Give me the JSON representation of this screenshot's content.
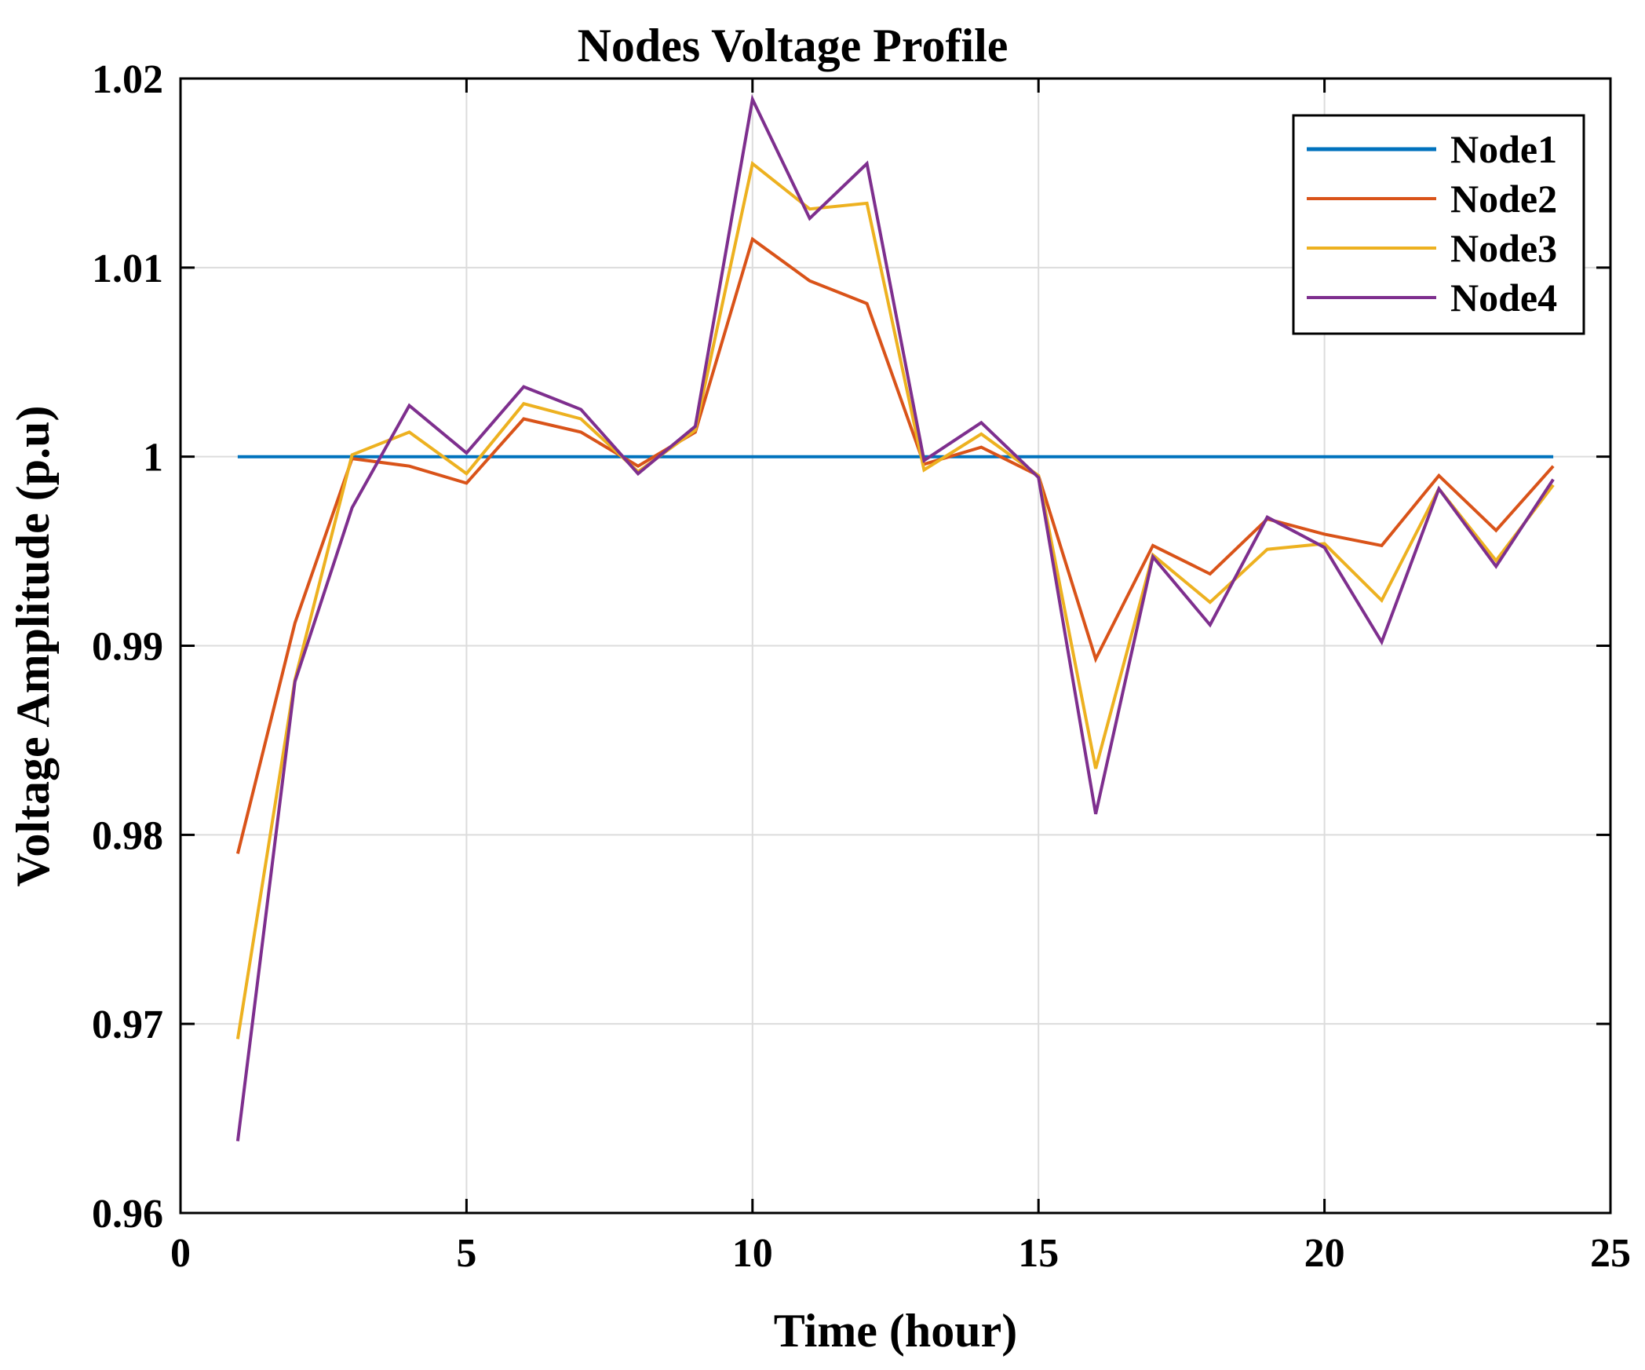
{
  "chart_data": {
    "type": "line",
    "title": "Nodes Voltage Profile",
    "xlabel": "Time (hour)",
    "ylabel": "Voltage Amplitude (p.u)",
    "xlim": [
      0,
      25
    ],
    "ylim": [
      0.96,
      1.02
    ],
    "xticks": [
      0,
      5,
      10,
      15,
      20,
      25
    ],
    "xtick_labels": [
      "0",
      "5",
      "10",
      "15",
      "20",
      "25"
    ],
    "yticks": [
      0.96,
      0.97,
      0.98,
      0.99,
      1.0,
      1.01,
      1.02
    ],
    "ytick_labels": [
      "0.96",
      "0.97",
      "0.98",
      "0.99",
      "1",
      "1.01",
      "1.02"
    ],
    "grid": true,
    "legend_position": "top-right",
    "x": [
      1,
      2,
      3,
      4,
      5,
      6,
      7,
      8,
      9,
      10,
      11,
      12,
      13,
      14,
      15,
      16,
      17,
      18,
      19,
      20,
      21,
      22,
      23,
      24
    ],
    "series": [
      {
        "name": "Node1",
        "color": "#0072BD",
        "values": [
          1.0,
          1.0,
          1.0,
          1.0,
          1.0,
          1.0,
          1.0,
          1.0,
          1.0,
          1.0,
          1.0,
          1.0,
          1.0,
          1.0,
          1.0,
          1.0,
          1.0,
          1.0,
          1.0,
          1.0,
          1.0,
          1.0,
          1.0,
          1.0
        ]
      },
      {
        "name": "Node2",
        "color": "#D95319",
        "values": [
          0.979,
          0.9912,
          0.9999,
          0.9995,
          0.9986,
          1.002,
          1.0013,
          0.9995,
          1.0013,
          1.0115,
          1.0093,
          1.0081,
          0.9996,
          1.0005,
          0.999,
          0.9893,
          0.9953,
          0.9938,
          0.9967,
          0.9959,
          0.9953,
          0.999,
          0.9961,
          0.9995
        ]
      },
      {
        "name": "Node3",
        "color": "#EDB120",
        "values": [
          0.9692,
          0.9882,
          1.0001,
          1.0013,
          0.9991,
          1.0028,
          1.002,
          0.9992,
          1.0014,
          1.0155,
          1.0131,
          1.0134,
          0.9993,
          1.0012,
          0.999,
          0.9835,
          0.9948,
          0.9923,
          0.9951,
          0.9954,
          0.9924,
          0.9983,
          0.9945,
          0.9985
        ]
      },
      {
        "name": "Node4",
        "color": "#7E2F8E",
        "values": [
          0.9638,
          0.9881,
          0.9973,
          1.0027,
          1.0002,
          1.0037,
          1.0025,
          0.9991,
          1.0016,
          1.0189,
          1.0126,
          1.0155,
          0.9998,
          1.0018,
          0.9989,
          0.9811,
          0.9947,
          0.9911,
          0.9968,
          0.9952,
          0.9902,
          0.9983,
          0.9942,
          0.9988
        ]
      }
    ]
  }
}
